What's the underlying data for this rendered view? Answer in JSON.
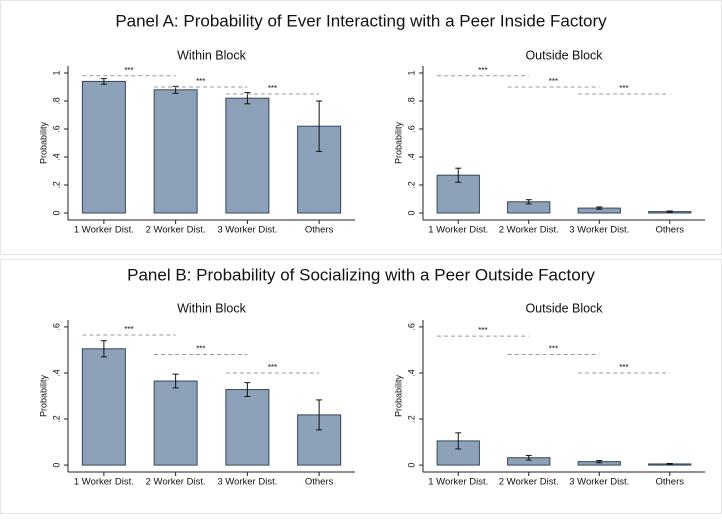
{
  "chart_data": [
    {
      "type": "bar",
      "panel_title": "Panel A: Probability of Ever Interacting with a Peer Inside Factory",
      "title": "Within Block",
      "ylabel": "Probability",
      "categories": [
        "1 Worker Dist.",
        "2 Worker Dist.",
        "3 Worker Dist.",
        "Others"
      ],
      "values": [
        0.94,
        0.88,
        0.82,
        0.62
      ],
      "errors": [
        0.02,
        0.025,
        0.04,
        0.18
      ],
      "significance_labels": [
        "***",
        "***",
        "***"
      ],
      "significance_y": [
        0.98,
        0.9,
        0.85
      ],
      "color": "#8da2b8",
      "ylim": [
        -0.05,
        1.05
      ],
      "yticks": [
        0,
        {
          "value": 0.2,
          "label": ".2"
        },
        {
          "value": 0.4,
          "label": ".4"
        },
        {
          "value": 0.6,
          "label": ".6"
        },
        {
          "value": 0.8,
          "label": ".8"
        },
        1
      ]
    },
    {
      "type": "bar",
      "title": "Outside Block",
      "ylabel": "Probability",
      "categories": [
        "1 Worker Dist.",
        "2 Worker Dist.",
        "3 Worker Dist.",
        "Others"
      ],
      "values": [
        0.27,
        0.08,
        0.035,
        0.01
      ],
      "errors": [
        0.05,
        0.015,
        0.008,
        0.004
      ],
      "significance_labels": [
        "***",
        "***",
        "***"
      ],
      "significance_y": [
        0.98,
        0.9,
        0.85
      ],
      "color": "#8da2b8",
      "ylim": [
        -0.05,
        1.05
      ],
      "yticks": [
        0,
        {
          "value": 0.2,
          "label": ".2"
        },
        {
          "value": 0.4,
          "label": ".4"
        },
        {
          "value": 0.6,
          "label": ".6"
        },
        {
          "value": 0.8,
          "label": ".8"
        },
        1
      ]
    },
    {
      "type": "bar",
      "panel_title": "Panel B: Probability of Socializing with a Peer Outside Factory",
      "title": "Within Block",
      "ylabel": "Probability",
      "categories": [
        "1 Worker Dist.",
        "2 Worker Dist.",
        "3 Worker Dist.",
        "Others"
      ],
      "values": [
        0.505,
        0.365,
        0.328,
        0.218
      ],
      "errors": [
        0.035,
        0.03,
        0.03,
        0.065
      ],
      "significance_labels": [
        "***",
        "***",
        "***"
      ],
      "significance_y": [
        0.565,
        0.48,
        0.4
      ],
      "color": "#8da2b8",
      "ylim": [
        -0.03,
        0.63
      ],
      "yticks": [
        0,
        {
          "value": 0.2,
          "label": ".2"
        },
        {
          "value": 0.4,
          "label": ".4"
        },
        {
          "value": 0.6,
          "label": ".6"
        }
      ]
    },
    {
      "type": "bar",
      "title": "Outside Block",
      "ylabel": "Probability",
      "categories": [
        "1 Worker Dist.",
        "2 Worker Dist.",
        "3 Worker Dist.",
        "Others"
      ],
      "values": [
        0.105,
        0.032,
        0.015,
        0.005
      ],
      "errors": [
        0.035,
        0.01,
        0.005,
        0.002
      ],
      "significance_labels": [
        "***",
        "***",
        "***"
      ],
      "significance_y": [
        0.56,
        0.48,
        0.4
      ],
      "color": "#8da2b8",
      "ylim": [
        -0.03,
        0.63
      ],
      "yticks": [
        0,
        {
          "value": 0.2,
          "label": ".2"
        },
        {
          "value": 0.4,
          "label": ".4"
        },
        {
          "value": 0.6,
          "label": ".6"
        }
      ]
    }
  ]
}
